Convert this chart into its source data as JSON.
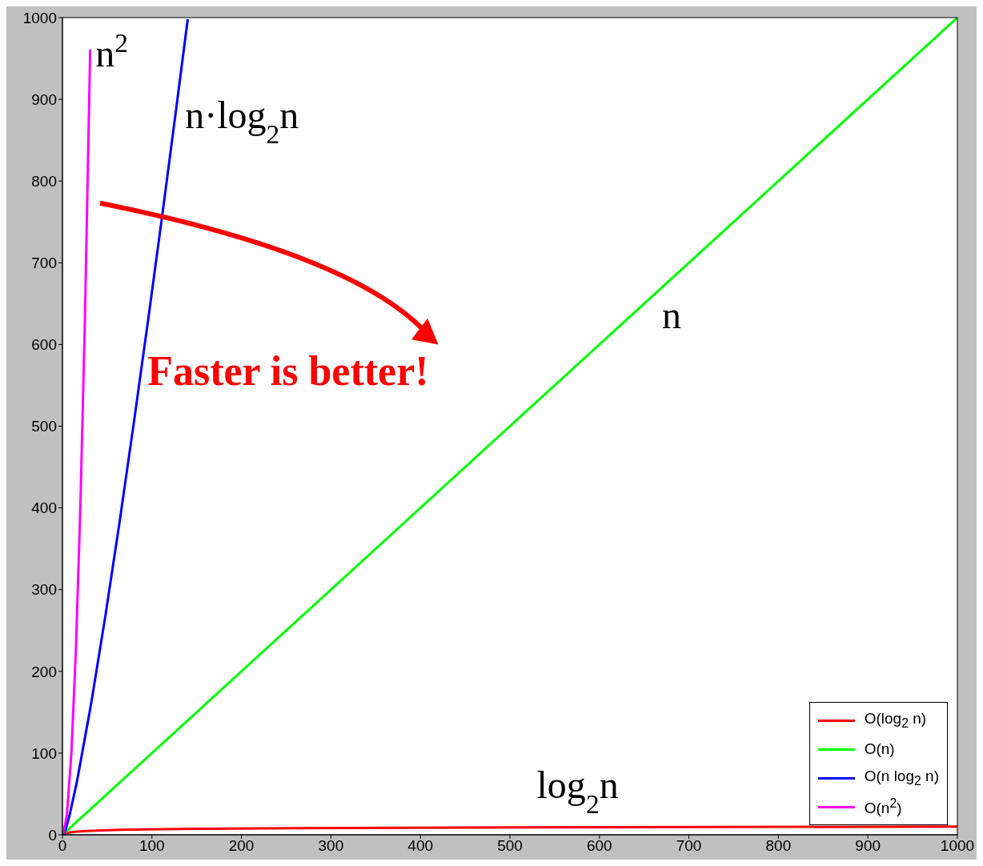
{
  "chart_data": {
    "type": "line",
    "xlim": [
      0,
      1000
    ],
    "xticks": [
      0,
      100,
      200,
      300,
      400,
      500,
      600,
      700,
      800,
      900,
      1000
    ],
    "ylim": [
      0,
      1000
    ],
    "yticks": [
      0,
      100,
      200,
      300,
      400,
      500,
      600,
      700,
      800,
      900,
      1000
    ],
    "grid": false,
    "legend": "bottom right",
    "marker": "none",
    "line_style": "solid",
    "series": [
      {
        "name": "O(log$_{2}$ n)",
        "color": "#ff0000",
        "x": [
          1,
          2,
          4,
          8,
          16,
          32,
          64,
          128,
          256,
          512,
          1000
        ],
        "values": [
          0,
          1,
          2,
          3,
          4,
          5,
          6,
          7,
          8,
          9,
          10
        ]
      },
      {
        "name": "O(n)",
        "color": "#00ff00",
        "x": [
          0,
          1000
        ],
        "values": [
          0,
          1000
        ]
      },
      {
        "name": "O(n log$_{2}$ n)",
        "color": "#0000ff",
        "x": [
          1,
          2,
          4,
          8,
          16,
          32,
          48,
          64,
          80,
          96,
          112,
          128,
          140
        ],
        "values": [
          0,
          2,
          8,
          24,
          64,
          160,
          268,
          384,
          506,
          632,
          762,
          896,
          998
        ]
      },
      {
        "name": "O(n$^{2}$)",
        "color": "#ff00ff",
        "x": [
          1,
          5,
          10,
          15,
          20,
          25,
          31
        ],
        "values": [
          1,
          25,
          100,
          225,
          400,
          625,
          961
        ]
      }
    ],
    "annotations": [
      "n$^{2}$",
      "n·log$_{2}$n",
      "n",
      "log$_{2}$n",
      "Faster is better!"
    ]
  }
}
